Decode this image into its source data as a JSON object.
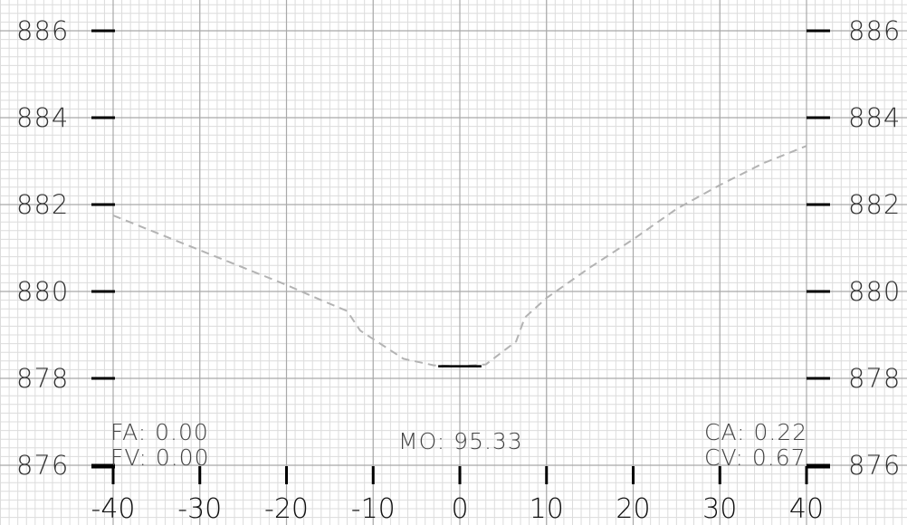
{
  "chart_data": {
    "type": "line",
    "x_ticks": [
      -40,
      -30,
      -20,
      -10,
      0,
      10,
      20,
      30,
      40
    ],
    "y_ticks": [
      876,
      878,
      880,
      882,
      884,
      886
    ],
    "xlim": [
      -40,
      40
    ],
    "ylim": [
      875.8,
      886.3
    ],
    "x_tick_labels": [
      "-40",
      "-30",
      "-20",
      "-10",
      "0",
      "10",
      "20",
      "30",
      "40"
    ],
    "y_tick_labels": [
      "886",
      "884",
      "882",
      "880",
      "878",
      "876"
    ],
    "grid": true,
    "series": [
      {
        "style": "dashed",
        "color": "#b3b3b3",
        "points": [
          [
            -40,
            881.75
          ],
          [
            -35,
            881.35
          ],
          [
            -30,
            880.95
          ],
          [
            -25,
            880.55
          ],
          [
            -20,
            880.15
          ],
          [
            -16,
            879.8
          ],
          [
            -13,
            879.55
          ],
          [
            -11.5,
            879.1
          ],
          [
            -6.5,
            878.45
          ],
          [
            -3,
            878.3
          ],
          [
            0,
            878.28
          ],
          [
            3,
            878.32
          ],
          [
            6.5,
            878.85
          ],
          [
            7.5,
            879.4
          ],
          [
            10,
            879.85
          ],
          [
            15,
            880.55
          ],
          [
            20,
            881.2
          ],
          [
            25,
            881.9
          ],
          [
            30,
            882.45
          ],
          [
            35,
            882.95
          ],
          [
            40,
            883.35
          ]
        ]
      },
      {
        "style": "solid",
        "color": "#000000",
        "points": [
          [
            -2.5,
            878.28
          ],
          [
            2.5,
            878.28
          ]
        ]
      }
    ],
    "annotations": {
      "fa": "FA: 0.00",
      "fv": "FV: 0.00",
      "mo": "MO: 95.33",
      "ca": "CA: 0.22",
      "cv": "CV: 0.67"
    }
  }
}
